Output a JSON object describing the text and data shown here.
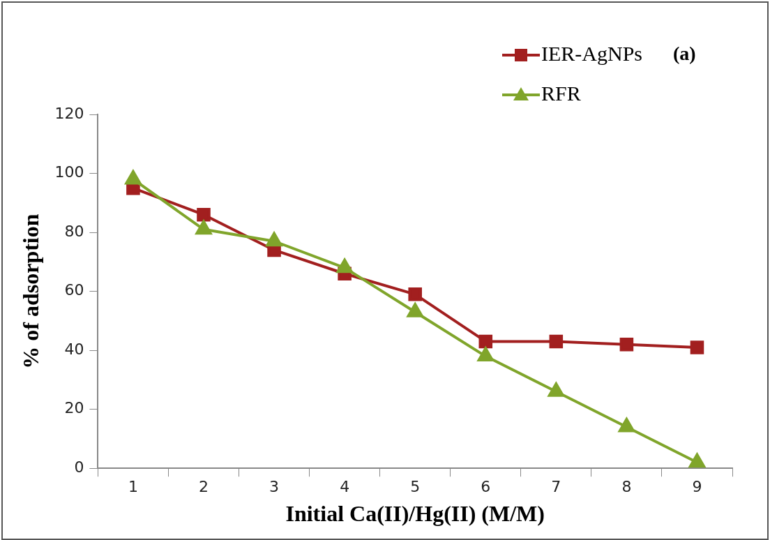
{
  "chart_data": {
    "type": "line",
    "xlabel": "Initial Ca(II)/Hg(II) (M/M)",
    "ylabel": "% of adsorption",
    "categories": [
      "1",
      "2",
      "3",
      "4",
      "5",
      "6",
      "7",
      "8",
      "9"
    ],
    "series": [
      {
        "name": "IER-AgNPs",
        "color": "#a21f1f",
        "marker": "square",
        "values": [
          95,
          86,
          74,
          66,
          59,
          43,
          43,
          42,
          41
        ]
      },
      {
        "name": "RFR",
        "color": "#80a52b",
        "marker": "triangle",
        "values": [
          98,
          81,
          77,
          68,
          53,
          38,
          26,
          14,
          2
        ]
      }
    ],
    "ylim": [
      0,
      120
    ],
    "yticks": [
      0,
      20,
      40,
      60,
      80,
      100,
      120
    ],
    "grid": false,
    "legend": "top right",
    "annotations": [
      "(a)"
    ]
  }
}
